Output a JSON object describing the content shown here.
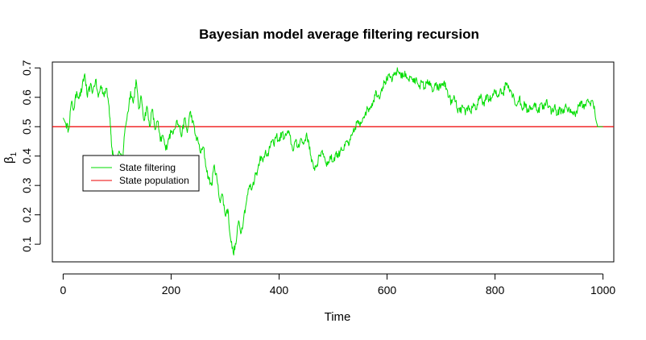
{
  "chart_data": {
    "type": "line",
    "title": "Bayesian model average filtering recursion",
    "xlabel": "Time",
    "ylabel_main": "β",
    "ylabel_sub": "1",
    "xlim": [
      -20,
      1020
    ],
    "ylim": [
      0.04,
      0.72
    ],
    "x_ticks": [
      0,
      200,
      400,
      600,
      800,
      1000
    ],
    "y_ticks": [
      0.1,
      0.2,
      0.3,
      0.4,
      0.5,
      0.6,
      0.7
    ],
    "grid": false,
    "legend_position": "left-middle",
    "series": [
      {
        "name": "State filtering",
        "color": "#00dd00",
        "anchors": [
          [
            0,
            0.53
          ],
          [
            5,
            0.51
          ],
          [
            10,
            0.49
          ],
          [
            15,
            0.58
          ],
          [
            20,
            0.56
          ],
          [
            25,
            0.62
          ],
          [
            30,
            0.6
          ],
          [
            35,
            0.63
          ],
          [
            40,
            0.68
          ],
          [
            45,
            0.6
          ],
          [
            50,
            0.64
          ],
          [
            55,
            0.62
          ],
          [
            60,
            0.66
          ],
          [
            65,
            0.6
          ],
          [
            70,
            0.64
          ],
          [
            75,
            0.61
          ],
          [
            80,
            0.63
          ],
          [
            85,
            0.57
          ],
          [
            88,
            0.5
          ],
          [
            90,
            0.43
          ],
          [
            93,
            0.4
          ],
          [
            98,
            0.38
          ],
          [
            105,
            0.41
          ],
          [
            110,
            0.39
          ],
          [
            115,
            0.5
          ],
          [
            120,
            0.55
          ],
          [
            125,
            0.62
          ],
          [
            130,
            0.58
          ],
          [
            135,
            0.66
          ],
          [
            140,
            0.56
          ],
          [
            145,
            0.6
          ],
          [
            150,
            0.52
          ],
          [
            155,
            0.57
          ],
          [
            160,
            0.5
          ],
          [
            165,
            0.56
          ],
          [
            170,
            0.49
          ],
          [
            175,
            0.52
          ],
          [
            180,
            0.45
          ],
          [
            185,
            0.47
          ],
          [
            190,
            0.42
          ],
          [
            195,
            0.46
          ],
          [
            200,
            0.48
          ],
          [
            205,
            0.49
          ],
          [
            210,
            0.52
          ],
          [
            215,
            0.5
          ],
          [
            220,
            0.47
          ],
          [
            225,
            0.53
          ],
          [
            230,
            0.48
          ],
          [
            235,
            0.55
          ],
          [
            240,
            0.52
          ],
          [
            245,
            0.47
          ],
          [
            250,
            0.45
          ],
          [
            255,
            0.41
          ],
          [
            260,
            0.43
          ],
          [
            265,
            0.36
          ],
          [
            270,
            0.32
          ],
          [
            275,
            0.3
          ],
          [
            280,
            0.37
          ],
          [
            285,
            0.32
          ],
          [
            290,
            0.25
          ],
          [
            295,
            0.27
          ],
          [
            300,
            0.2
          ],
          [
            305,
            0.22
          ],
          [
            310,
            0.12
          ],
          [
            315,
            0.07
          ],
          [
            320,
            0.1
          ],
          [
            325,
            0.18
          ],
          [
            330,
            0.14
          ],
          [
            335,
            0.2
          ],
          [
            340,
            0.25
          ],
          [
            345,
            0.3
          ],
          [
            350,
            0.29
          ],
          [
            355,
            0.33
          ],
          [
            360,
            0.35
          ],
          [
            365,
            0.4
          ],
          [
            370,
            0.38
          ],
          [
            375,
            0.42
          ],
          [
            380,
            0.4
          ],
          [
            385,
            0.45
          ],
          [
            390,
            0.44
          ],
          [
            395,
            0.47
          ],
          [
            400,
            0.45
          ],
          [
            405,
            0.48
          ],
          [
            410,
            0.46
          ],
          [
            415,
            0.48
          ],
          [
            420,
            0.47
          ],
          [
            425,
            0.42
          ],
          [
            430,
            0.45
          ],
          [
            435,
            0.43
          ],
          [
            440,
            0.46
          ],
          [
            445,
            0.44
          ],
          [
            450,
            0.47
          ],
          [
            455,
            0.45
          ],
          [
            460,
            0.38
          ],
          [
            465,
            0.36
          ],
          [
            470,
            0.37
          ],
          [
            475,
            0.4
          ],
          [
            480,
            0.42
          ],
          [
            485,
            0.39
          ],
          [
            490,
            0.37
          ],
          [
            495,
            0.4
          ],
          [
            500,
            0.38
          ],
          [
            505,
            0.41
          ],
          [
            510,
            0.4
          ],
          [
            515,
            0.43
          ],
          [
            520,
            0.42
          ],
          [
            525,
            0.45
          ],
          [
            530,
            0.44
          ],
          [
            535,
            0.47
          ],
          [
            540,
            0.49
          ],
          [
            545,
            0.52
          ],
          [
            550,
            0.5
          ],
          [
            555,
            0.53
          ],
          [
            560,
            0.55
          ],
          [
            565,
            0.56
          ],
          [
            570,
            0.57
          ],
          [
            575,
            0.59
          ],
          [
            580,
            0.62
          ],
          [
            585,
            0.6
          ],
          [
            590,
            0.63
          ],
          [
            595,
            0.65
          ],
          [
            600,
            0.66
          ],
          [
            605,
            0.67
          ],
          [
            610,
            0.66
          ],
          [
            615,
            0.68
          ],
          [
            620,
            0.69
          ],
          [
            625,
            0.68
          ],
          [
            630,
            0.67
          ],
          [
            635,
            0.68
          ],
          [
            640,
            0.66
          ],
          [
            645,
            0.67
          ],
          [
            650,
            0.65
          ],
          [
            655,
            0.66
          ],
          [
            660,
            0.64
          ],
          [
            665,
            0.65
          ],
          [
            670,
            0.63
          ],
          [
            675,
            0.66
          ],
          [
            680,
            0.64
          ],
          [
            685,
            0.62
          ],
          [
            690,
            0.64
          ],
          [
            695,
            0.63
          ],
          [
            700,
            0.64
          ],
          [
            705,
            0.65
          ],
          [
            710,
            0.63
          ],
          [
            715,
            0.6
          ],
          [
            720,
            0.58
          ],
          [
            725,
            0.6
          ],
          [
            730,
            0.56
          ],
          [
            735,
            0.55
          ],
          [
            740,
            0.57
          ],
          [
            745,
            0.54
          ],
          [
            750,
            0.57
          ],
          [
            755,
            0.55
          ],
          [
            760,
            0.58
          ],
          [
            765,
            0.56
          ],
          [
            770,
            0.59
          ],
          [
            775,
            0.6
          ],
          [
            780,
            0.57
          ],
          [
            785,
            0.61
          ],
          [
            790,
            0.59
          ],
          [
            795,
            0.6
          ],
          [
            800,
            0.62
          ],
          [
            805,
            0.6
          ],
          [
            810,
            0.63
          ],
          [
            815,
            0.61
          ],
          [
            820,
            0.65
          ],
          [
            825,
            0.64
          ],
          [
            830,
            0.62
          ],
          [
            835,
            0.6
          ],
          [
            840,
            0.57
          ],
          [
            845,
            0.6
          ],
          [
            850,
            0.56
          ],
          [
            855,
            0.58
          ],
          [
            860,
            0.55
          ],
          [
            865,
            0.57
          ],
          [
            870,
            0.56
          ],
          [
            875,
            0.58
          ],
          [
            880,
            0.55
          ],
          [
            885,
            0.58
          ],
          [
            890,
            0.56
          ],
          [
            895,
            0.59
          ],
          [
            900,
            0.57
          ],
          [
            905,
            0.55
          ],
          [
            910,
            0.57
          ],
          [
            915,
            0.54
          ],
          [
            920,
            0.56
          ],
          [
            925,
            0.55
          ],
          [
            930,
            0.57
          ],
          [
            935,
            0.55
          ],
          [
            940,
            0.56
          ],
          [
            945,
            0.54
          ],
          [
            950,
            0.55
          ],
          [
            955,
            0.57
          ],
          [
            960,
            0.58
          ],
          [
            965,
            0.56
          ],
          [
            970,
            0.59
          ],
          [
            975,
            0.58
          ],
          [
            980,
            0.59
          ],
          [
            985,
            0.55
          ],
          [
            990,
            0.5
          ],
          [
            995,
            0.5
          ],
          [
            1000,
            0.5
          ]
        ]
      },
      {
        "name": "State population",
        "color": "#ee0000",
        "constant": 0.5
      }
    ]
  }
}
